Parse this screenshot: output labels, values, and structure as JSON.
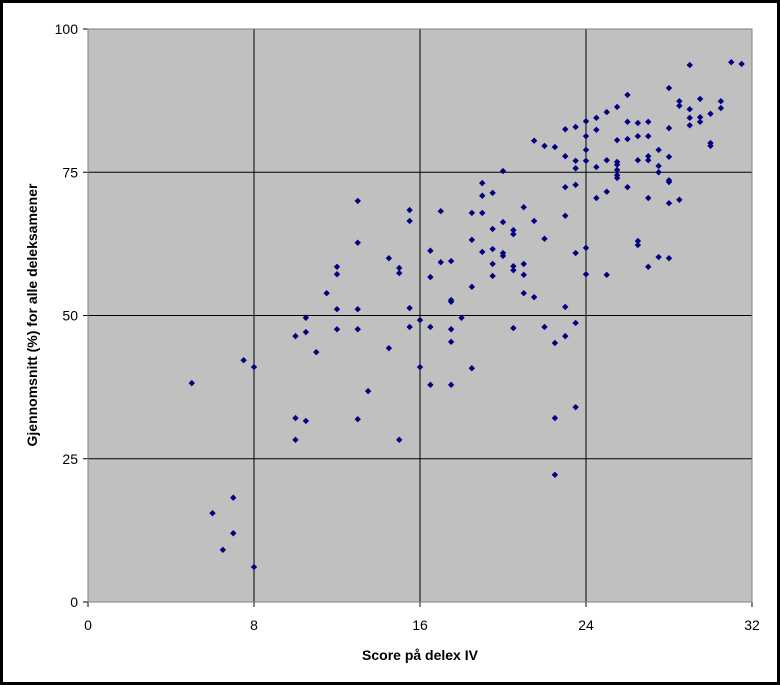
{
  "chart_data": {
    "type": "scatter",
    "xlabel": "Score på delex IV",
    "ylabel": "Gjennomsnitt (%) for alle deleksamener",
    "color": "#000080",
    "xlim": [
      0,
      32
    ],
    "xticks": [
      0,
      8,
      16,
      24,
      32
    ],
    "ylim": [
      0,
      100
    ],
    "yticks": [
      0,
      25,
      50,
      75,
      100
    ],
    "grid": true,
    "x": [
      5,
      6,
      6.5,
      7,
      7,
      7.5,
      8,
      8,
      10,
      10,
      10,
      10.5,
      10.5,
      10.5,
      11,
      11.5,
      12,
      12,
      12,
      12,
      13,
      13,
      13,
      13,
      13,
      13.5,
      14.5,
      14.5,
      15,
      15,
      15,
      15.5,
      15.5,
      15.5,
      15.5,
      16,
      16,
      16.5,
      16.5,
      16.5,
      16.5,
      17,
      17,
      17.5,
      17.5,
      17.5,
      17.5,
      17.5,
      17.5,
      18,
      18.5,
      18.5,
      18.5,
      18.5,
      19,
      19,
      19,
      19,
      19.5,
      19.5,
      19.5,
      19.5,
      19.5,
      20,
      20,
      20,
      20,
      20.5,
      20.5,
      20.5,
      20.5,
      20.5,
      21,
      21,
      21,
      21,
      21.5,
      21.5,
      21.5,
      22,
      22,
      22,
      22.5,
      22.5,
      22.5,
      22.5,
      23,
      23,
      23,
      23,
      23,
      23,
      23.5,
      23.5,
      23.5,
      23.5,
      23.5,
      23.5,
      23.5,
      24,
      24,
      24,
      24,
      24,
      24,
      24.5,
      24.5,
      24.5,
      24.5,
      25,
      25,
      25,
      25,
      25.5,
      25.5,
      25.5,
      25.5,
      25.5,
      25.5,
      25.5,
      26,
      26,
      26,
      26,
      26.5,
      26.5,
      26.5,
      26.5,
      26.5,
      27,
      27,
      27,
      27,
      27,
      27,
      27.5,
      27.5,
      27.5,
      27.5,
      28,
      28,
      28,
      28,
      28,
      28,
      28,
      28.5,
      28.5,
      28.5,
      29,
      29,
      29,
      29,
      29.5,
      29.5,
      29.5,
      30,
      30,
      30,
      30.5,
      30.5,
      31,
      31.5
    ],
    "y": [
      38.2,
      15.5,
      9.1,
      18.2,
      12,
      42.2,
      41,
      6.1,
      46.4,
      32.1,
      28.3,
      49.6,
      47.1,
      31.6,
      43.6,
      53.9,
      58.5,
      57.2,
      51.1,
      47.6,
      70,
      62.7,
      51.1,
      47.6,
      31.9,
      36.8,
      60,
      44.3,
      58.3,
      57.4,
      28.3,
      68.4,
      66.5,
      51.3,
      48,
      49.2,
      41,
      61.3,
      56.7,
      48,
      37.9,
      68.2,
      59.3,
      59.5,
      52.7,
      52.4,
      47.6,
      45.4,
      37.9,
      49.6,
      67.9,
      63.2,
      55,
      40.8,
      73.1,
      70.9,
      67.9,
      61.1,
      71.4,
      65.1,
      61.6,
      59,
      56.9,
      75.2,
      66.3,
      60.9,
      60.4,
      64.9,
      64.2,
      58.6,
      57.9,
      47.8,
      68.9,
      59,
      57.1,
      53.9,
      80.5,
      66.5,
      53.2,
      79.6,
      63.4,
      48,
      79.4,
      45.2,
      32.1,
      22.2,
      82.5,
      77.8,
      72.4,
      67.4,
      51.5,
      46.4,
      82.9,
      77,
      75.7,
      72.8,
      60.9,
      48.7,
      34,
      83.9,
      81.3,
      78.9,
      77,
      61.8,
      57.2,
      84.5,
      82.4,
      75.9,
      70.5,
      85.5,
      77.1,
      71.6,
      57.1,
      86.4,
      80.6,
      76.8,
      76.3,
      75.4,
      74.5,
      74,
      88.5,
      83.8,
      80.8,
      72.4,
      83.6,
      81.3,
      77.1,
      63,
      62.3,
      83.8,
      81.3,
      77.8,
      77.1,
      70.5,
      58.5,
      78.9,
      76.1,
      75,
      60.2,
      89.7,
      82.7,
      77.7,
      73.6,
      73.3,
      69.6,
      60,
      87.4,
      86.6,
      70.2,
      93.7,
      86,
      84.5,
      83.2,
      87.8,
      84.6,
      83.8,
      85.2,
      80.1,
      79.6,
      87.4,
      86.2,
      94.2,
      93.9
    ]
  }
}
